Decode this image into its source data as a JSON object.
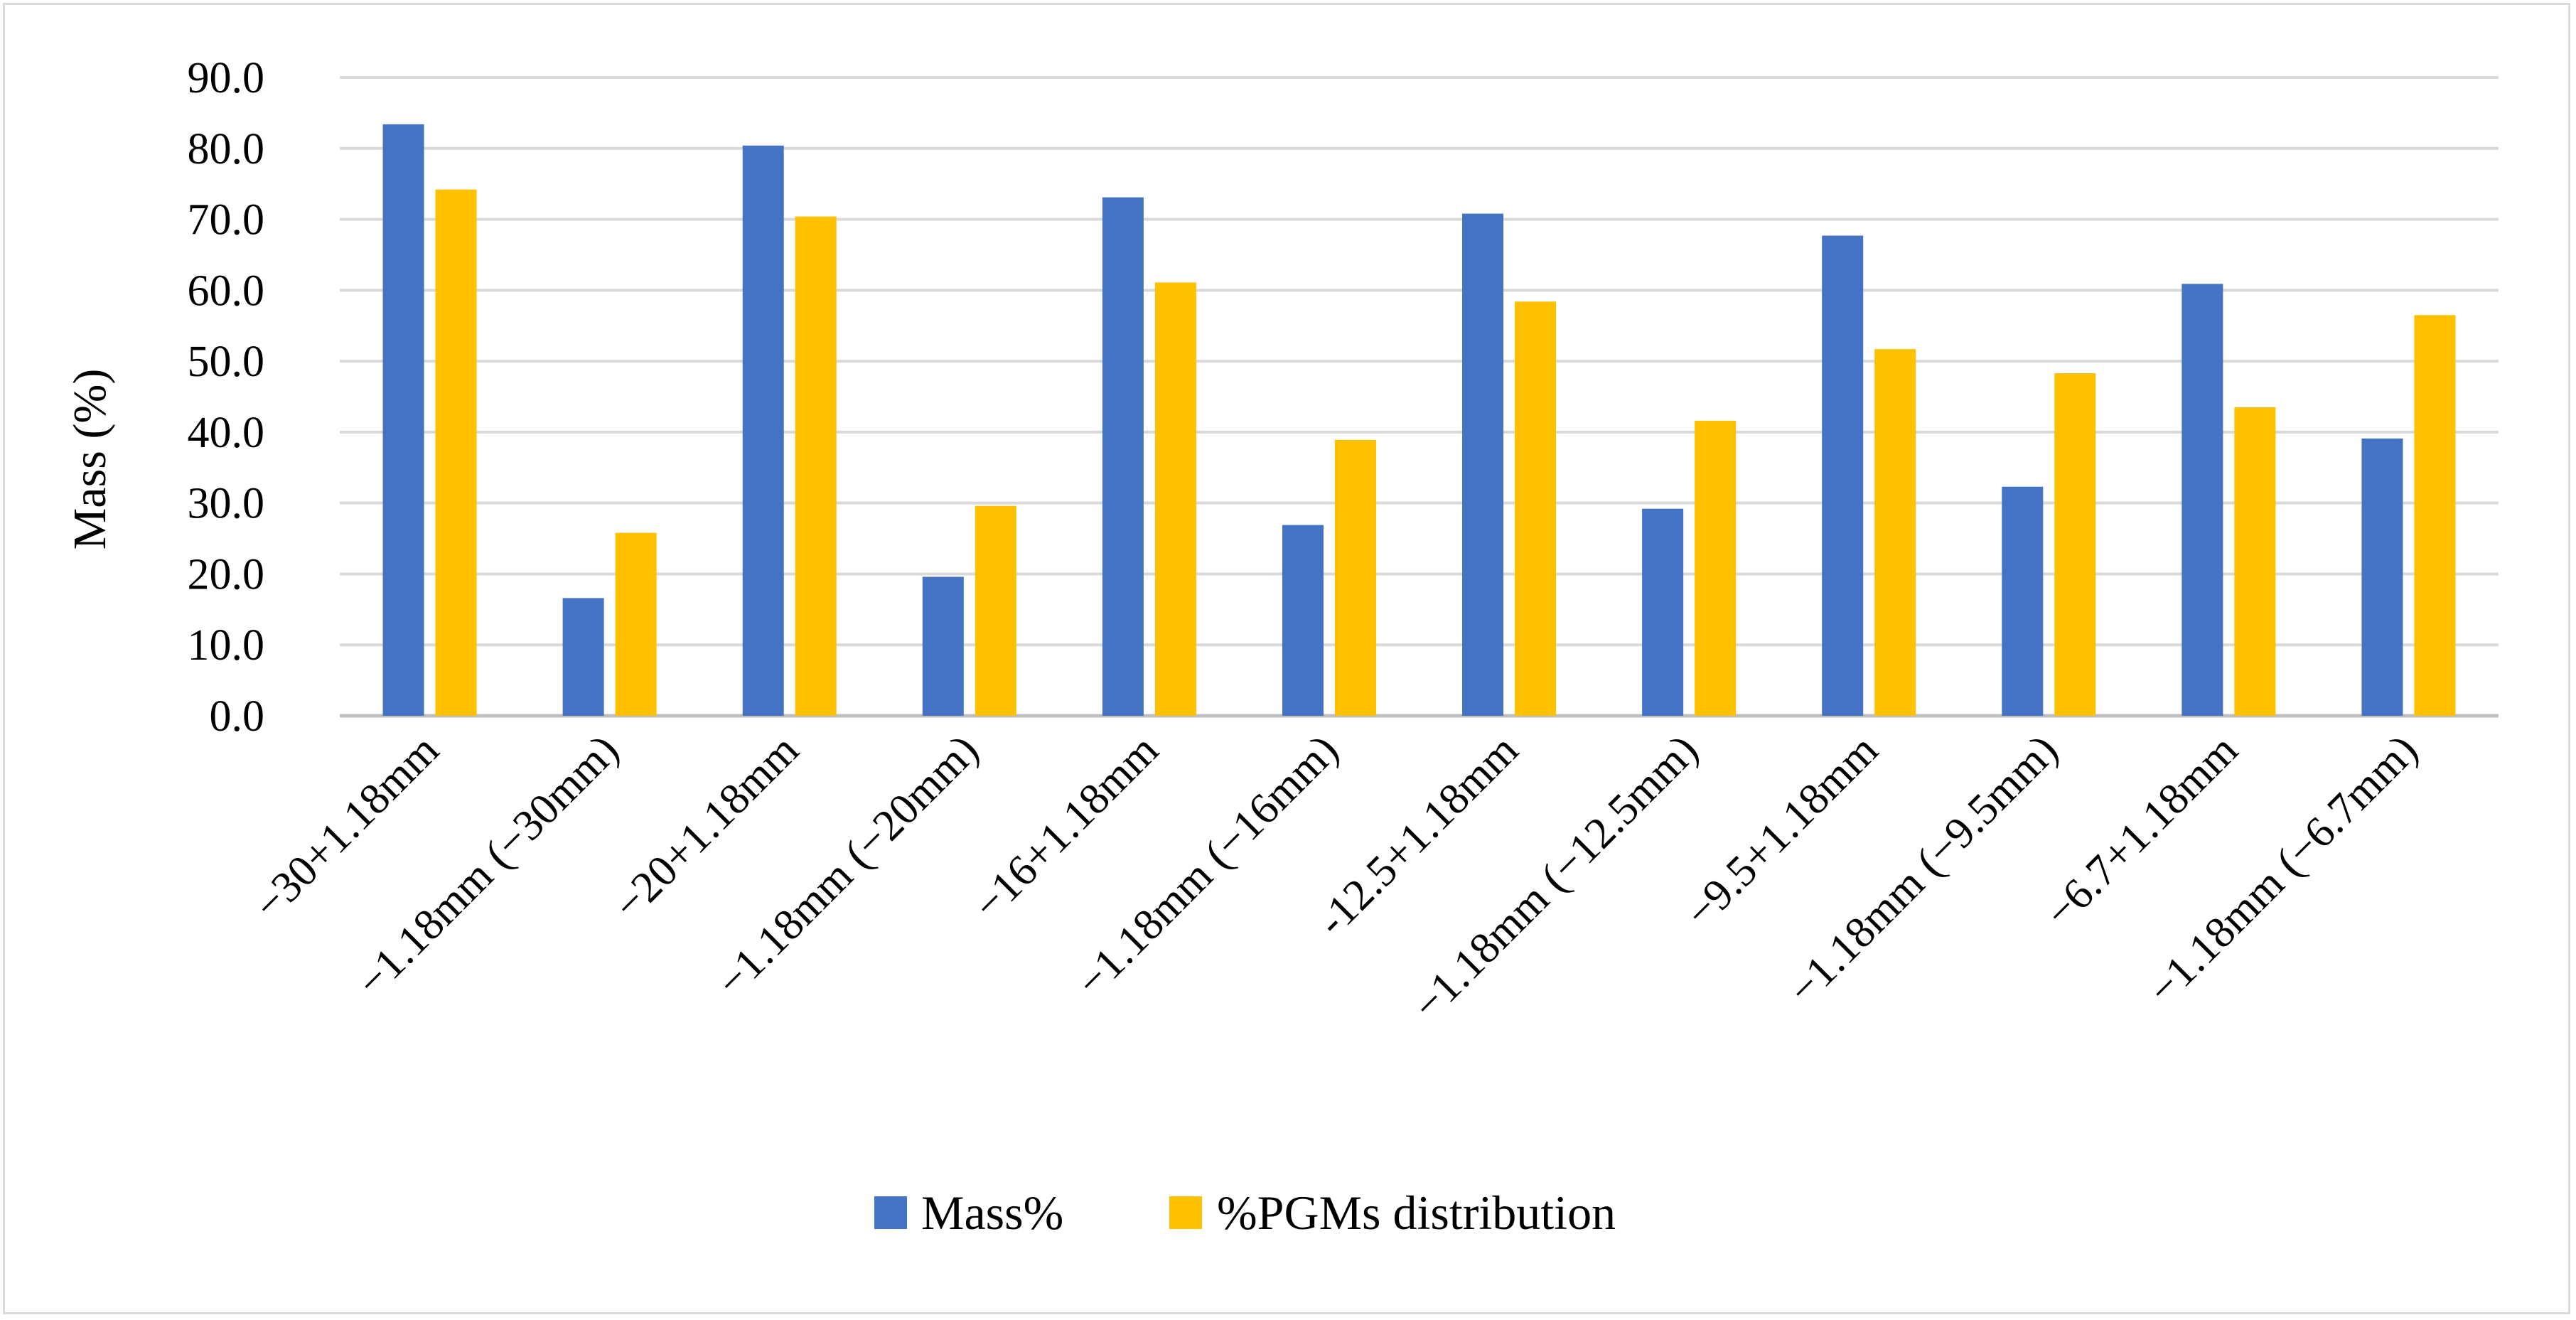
{
  "chart_data": {
    "type": "bar",
    "title": "",
    "xlabel": "",
    "ylabel": "Mass (%)",
    "ylim": [
      0,
      90
    ],
    "yticks": [
      0,
      10,
      20,
      30,
      40,
      50,
      60,
      70,
      80,
      90
    ],
    "ytick_labels": [
      "0.0",
      "10.0",
      "20.0",
      "30.0",
      "40.0",
      "50.0",
      "60.0",
      "70.0",
      "80.0",
      "90.0"
    ],
    "grid": true,
    "legend_position": "bottom",
    "categories": [
      "−30+1.18mm",
      "−1.18mm (−30mm)",
      "−20+1.18mm",
      "−1.18mm (−20mm)",
      "−16+1.18mm",
      "−1.18mm (−16mm)",
      "-12.5+1.18mm",
      "−1.18mm  (−12.5mm)",
      "−9.5+1.18mm",
      "−1.18mm (−9.5mm)",
      "−6.7+1.18mm",
      "−1.18mm (−6.7mm)"
    ],
    "series": [
      {
        "name": "Mass%",
        "color": "#4472c4",
        "values": [
          83.4,
          16.6,
          80.4,
          19.6,
          73.1,
          26.9,
          70.8,
          29.2,
          67.7,
          32.3,
          60.9,
          39.1
        ]
      },
      {
        "name": "%PGMs distribution",
        "color": "#ffc000",
        "values": [
          74.2,
          25.8,
          70.4,
          29.6,
          61.1,
          38.9,
          58.4,
          41.6,
          51.7,
          48.3,
          43.5,
          56.5
        ]
      }
    ]
  }
}
